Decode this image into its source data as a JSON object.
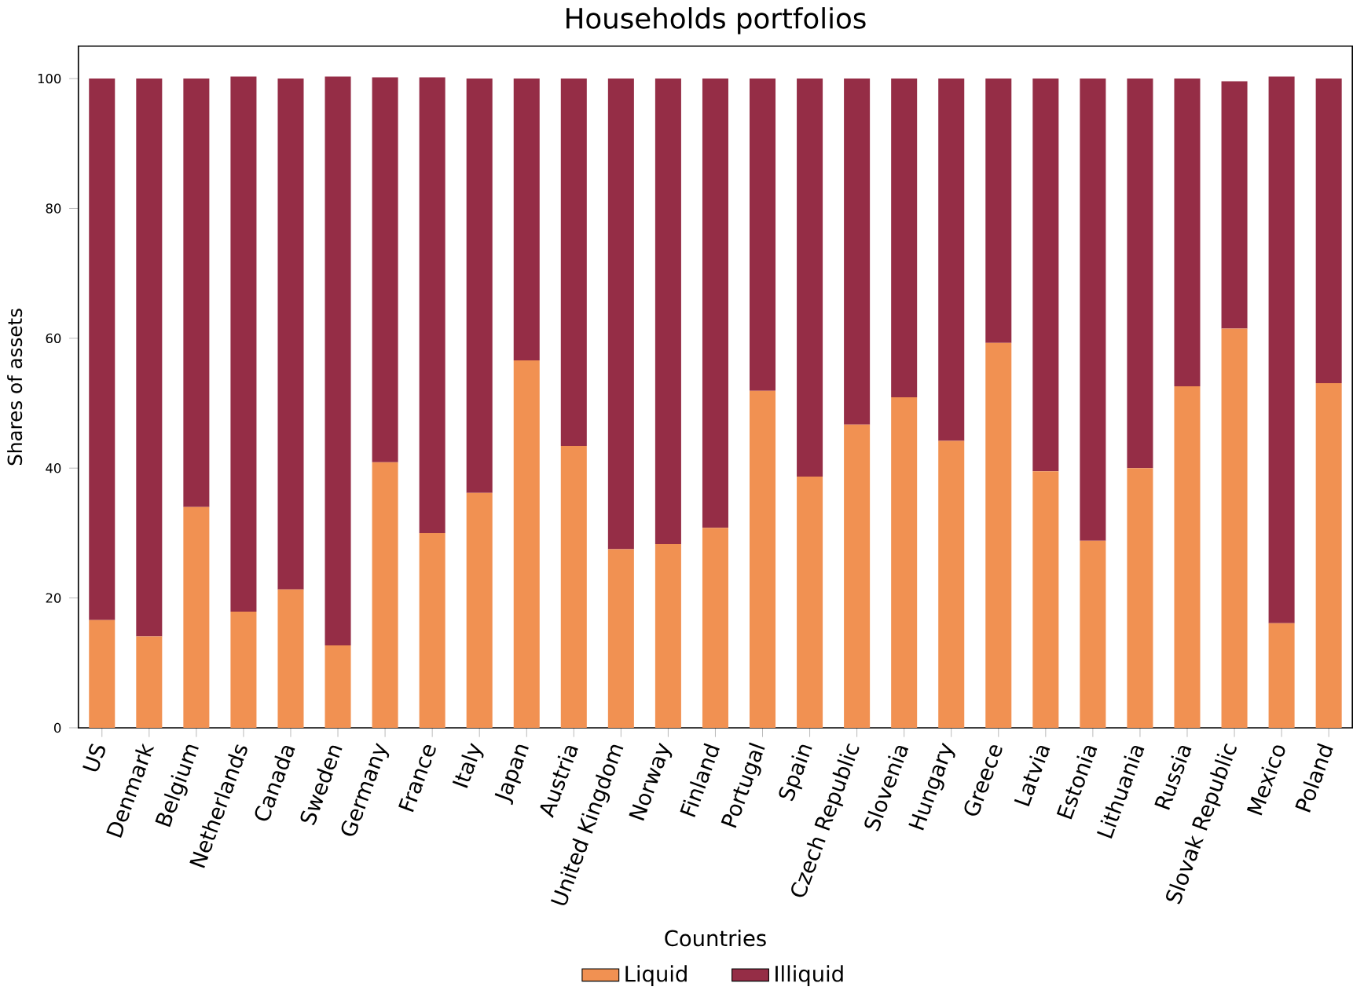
{
  "chart_data": {
    "type": "bar",
    "stacked": true,
    "title": "Households portfolios",
    "xlabel": "Countries",
    "ylabel": "Shares of assets",
    "categories": [
      "US",
      "Denmark",
      "Belgium",
      "Netherlands",
      "Canada",
      "Sweden",
      "Germany",
      "France",
      "Italy",
      "Japan",
      "Austria",
      "United Kingdom",
      "Norway",
      "Finland",
      "Portugal",
      "Spain",
      "Czech Republic",
      "Slovenia",
      "Hungary",
      "Greece",
      "Latvia",
      "Estonia",
      "Lithuania",
      "Russia",
      "Slovak Republic",
      "Mexico",
      "Poland"
    ],
    "series": [
      {
        "name": "Liquid",
        "color": "#f19152",
        "values": [
          16.6,
          14.1,
          34.0,
          17.9,
          21.3,
          12.7,
          40.9,
          30.0,
          36.2,
          56.6,
          43.4,
          27.5,
          28.3,
          30.8,
          51.9,
          38.7,
          46.7,
          50.9,
          44.2,
          59.3,
          39.5,
          28.8,
          40.0,
          52.6,
          61.5,
          16.1,
          53.1
        ]
      },
      {
        "name": "Illiquid",
        "color": "#952d46",
        "values": [
          83.4,
          85.9,
          66.0,
          82.4,
          78.7,
          87.6,
          59.3,
          70.2,
          63.8,
          43.4,
          56.6,
          72.5,
          71.7,
          69.2,
          48.1,
          61.3,
          53.3,
          49.1,
          55.8,
          40.7,
          60.5,
          71.2,
          60.0,
          47.4,
          38.1,
          84.2,
          46.9
        ]
      }
    ],
    "ylim": [
      0,
      105
    ],
    "yticks": [
      0,
      20,
      40,
      60,
      80,
      100
    ],
    "grid": false,
    "legend": "bottom"
  }
}
